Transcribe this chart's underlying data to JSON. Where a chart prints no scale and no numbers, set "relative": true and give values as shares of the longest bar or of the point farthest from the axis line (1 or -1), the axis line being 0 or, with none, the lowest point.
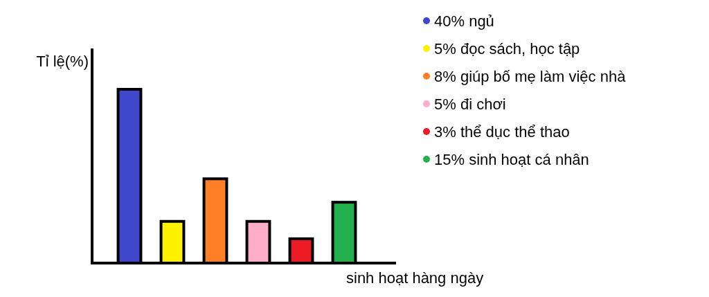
{
  "chart_data": {
    "type": "bar",
    "xlabel": "sinh hoạt hàng ngày",
    "ylabel": "Tỉ lệ(%)",
    "relative": true,
    "legend": "right",
    "stacked": true,
    "categories": [
      null,
      null,
      null,
      null,
      null,
      null
    ],
    "series": [
      {
        "name": "40% ngủ",
        "color": "#3f48cc",
        "values": [
          1,
          null,
          null,
          null,
          null,
          null
        ]
      },
      {
        "name": "5% đọc sách, học tập",
        "color": "#fff200",
        "values": [
          null,
          0.24,
          null,
          null,
          null,
          null
        ]
      },
      {
        "name": "8% giúp bố mẹ làm việc nhà",
        "color": "#ff7f27",
        "values": [
          null,
          null,
          0.485,
          null,
          null,
          null
        ]
      },
      {
        "name": "5% đi chơi",
        "color": "#ffaec9",
        "values": [
          null,
          null,
          null,
          0.24,
          null,
          null
        ]
      },
      {
        "name": "3% thể dục thể thao",
        "color": "#ed1c24",
        "values": [
          null,
          null,
          null,
          null,
          0.14,
          null
        ]
      },
      {
        "name": "15% sinh hoạt cá nhân",
        "color": "#22b14c",
        "values": [
          null,
          null,
          null,
          null,
          null,
          0.35
        ]
      }
    ]
  }
}
